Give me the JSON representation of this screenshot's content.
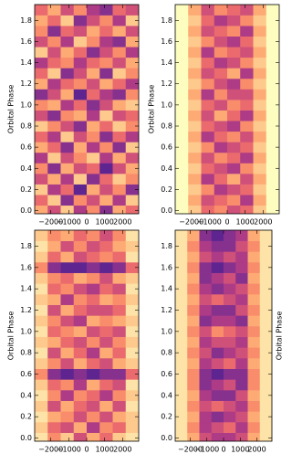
{
  "chart_data": [
    {
      "type": "heatmap",
      "ylabel": "Orbital Phase",
      "xlim": [
        -2900,
        2900
      ],
      "ylim": [
        -0.03,
        1.95
      ],
      "xticks": [
        {
          "value": -2000,
          "label": "−2000"
        },
        {
          "value": -1000,
          "label": "−1000"
        },
        0,
        1000,
        2000
      ],
      "yticks": [
        {
          "value": 0,
          "label": "0.0"
        },
        0.2,
        0.4,
        0.6,
        0.8,
        {
          "value": 1,
          "label": "1.0"
        },
        1.2,
        1.4,
        1.6,
        1.8
      ],
      "xbins": [
        -2900,
        -2175,
        -1450,
        -725,
        0,
        725,
        1450,
        2175,
        2900
      ],
      "ybins": [
        -0.05,
        0.05,
        0.15,
        0.25,
        0.35,
        0.45,
        0.55,
        0.65,
        0.75,
        0.85,
        0.95,
        1.05,
        1.15,
        1.25,
        1.35,
        1.45,
        1.55,
        1.65,
        1.75,
        1.85,
        1.95
      ],
      "colormap": [
        "#fcfdbf",
        "#fde3a7",
        "#fec98d",
        "#feaa74",
        "#f98c6b",
        "#ea6a6e",
        "#cf5079",
        "#ae3b86",
        "#87318f",
        "#5e2590"
      ],
      "values": [
        [
          3,
          6,
          2,
          7,
          4,
          8,
          3,
          5
        ],
        [
          5,
          2,
          8,
          4,
          6,
          3,
          7,
          2
        ],
        [
          2,
          7,
          5,
          9,
          3,
          6,
          4,
          8
        ],
        [
          6,
          3,
          7,
          2,
          8,
          5,
          2,
          4
        ],
        [
          4,
          8,
          3,
          6,
          5,
          9,
          6,
          3
        ],
        [
          7,
          2,
          6,
          4,
          2,
          7,
          3,
          6
        ],
        [
          3,
          5,
          8,
          3,
          7,
          4,
          8,
          2
        ],
        [
          5,
          7,
          2,
          6,
          4,
          8,
          5,
          7
        ],
        [
          2,
          4,
          6,
          8,
          3,
          5,
          2,
          4
        ],
        [
          6,
          8,
          4,
          3,
          7,
          2,
          6,
          5
        ],
        [
          4,
          3,
          7,
          5,
          8,
          6,
          3,
          2
        ],
        [
          8,
          6,
          3,
          9,
          5,
          7,
          8,
          4
        ],
        [
          3,
          7,
          5,
          4,
          6,
          3,
          5,
          7
        ],
        [
          5,
          2,
          8,
          6,
          3,
          8,
          2,
          4
        ],
        [
          7,
          5,
          4,
          7,
          5,
          4,
          6,
          3
        ],
        [
          2,
          6,
          3,
          5,
          8,
          6,
          4,
          7
        ],
        [
          6,
          4,
          7,
          2,
          4,
          7,
          8,
          3
        ],
        [
          4,
          8,
          5,
          6,
          3,
          5,
          3,
          6
        ],
        [
          3,
          5,
          2,
          8,
          6,
          4,
          7,
          2
        ],
        [
          5,
          3,
          6,
          4,
          7,
          8,
          5,
          6
        ]
      ]
    },
    {
      "type": "heatmap",
      "ylabel": "Orbital Phase",
      "xlim": [
        -2900,
        2900
      ],
      "ylim": [
        -0.03,
        1.95
      ],
      "xticks": [
        {
          "value": -2000,
          "label": "−2000"
        },
        {
          "value": -1000,
          "label": "−1000"
        },
        0,
        1000,
        2000
      ],
      "yticks": [
        {
          "value": 0,
          "label": "0.0"
        },
        0.2,
        0.4,
        0.6,
        0.8,
        {
          "value": 1,
          "label": "1.0"
        },
        1.2,
        1.4,
        1.6,
        1.8
      ],
      "xbins": [
        -2900,
        -2175,
        -1450,
        -725,
        0,
        725,
        1450,
        2175,
        2900
      ],
      "ybins": [
        -0.05,
        0.05,
        0.15,
        0.25,
        0.35,
        0.45,
        0.55,
        0.65,
        0.75,
        0.85,
        0.95,
        1.05,
        1.15,
        1.25,
        1.35,
        1.45,
        1.55,
        1.65,
        1.75,
        1.85,
        1.95
      ],
      "colormap": [
        "#fcfdbf",
        "#fde3a7",
        "#fec98d",
        "#feaa74",
        "#f98c6b",
        "#ea6a6e",
        "#cf5079",
        "#ae3b86",
        "#87318f",
        "#5e2590"
      ],
      "values": [
        [
          0,
          2,
          5,
          4,
          6,
          5,
          2,
          0
        ],
        [
          0,
          3,
          6,
          5,
          4,
          7,
          3,
          0
        ],
        [
          0,
          2,
          4,
          7,
          6,
          5,
          2,
          0
        ],
        [
          0,
          3,
          7,
          5,
          3,
          6,
          3,
          0
        ],
        [
          0,
          2,
          5,
          6,
          7,
          4,
          2,
          0
        ],
        [
          0,
          3,
          6,
          4,
          5,
          7,
          3,
          0
        ],
        [
          0,
          2,
          4,
          7,
          6,
          5,
          2,
          0
        ],
        [
          0,
          3,
          7,
          5,
          4,
          6,
          3,
          0
        ],
        [
          0,
          2,
          5,
          6,
          7,
          4,
          2,
          0
        ],
        [
          0,
          3,
          6,
          3,
          5,
          7,
          3,
          0
        ],
        [
          0,
          2,
          5,
          6,
          4,
          5,
          2,
          0
        ],
        [
          0,
          3,
          7,
          4,
          6,
          6,
          3,
          0
        ],
        [
          0,
          2,
          4,
          6,
          7,
          4,
          2,
          0
        ],
        [
          0,
          3,
          6,
          5,
          3,
          7,
          3,
          0
        ],
        [
          0,
          2,
          5,
          7,
          6,
          4,
          2,
          0
        ],
        [
          0,
          3,
          7,
          4,
          5,
          6,
          3,
          0
        ],
        [
          0,
          2,
          4,
          6,
          7,
          5,
          2,
          0
        ],
        [
          0,
          3,
          6,
          5,
          4,
          7,
          3,
          0
        ],
        [
          0,
          2,
          5,
          7,
          6,
          4,
          2,
          0
        ],
        [
          0,
          3,
          6,
          4,
          5,
          6,
          3,
          0
        ]
      ]
    },
    {
      "type": "heatmap",
      "ylabel": "Orbital Phase",
      "xlim": [
        -2900,
        2900
      ],
      "ylim": [
        -0.03,
        1.95
      ],
      "xticks": [
        {
          "value": -2000,
          "label": "−2000"
        },
        {
          "value": -1000,
          "label": "−1000"
        },
        0,
        1000,
        2000
      ],
      "yticks": [
        {
          "value": 0,
          "label": "0.0"
        },
        0.2,
        0.4,
        0.6,
        0.8,
        {
          "value": 1,
          "label": "1.0"
        },
        1.2,
        1.4,
        1.6,
        1.8
      ],
      "xbins": [
        -2900,
        -2175,
        -1450,
        -725,
        0,
        725,
        1450,
        2175,
        2900
      ],
      "ybins": [
        -0.05,
        0.05,
        0.15,
        0.25,
        0.35,
        0.45,
        0.55,
        0.65,
        0.75,
        0.85,
        0.95,
        1.05,
        1.15,
        1.25,
        1.35,
        1.45,
        1.55,
        1.65,
        1.75,
        1.85,
        1.95
      ],
      "colormap": [
        "#fcfdbf",
        "#fde3a7",
        "#fec98d",
        "#feaa74",
        "#f98c6b",
        "#ea6a6e",
        "#cf5079",
        "#ae3b86",
        "#87318f",
        "#5e2590"
      ],
      "values": [
        [
          1,
          4,
          2,
          6,
          3,
          5,
          2,
          1
        ],
        [
          2,
          5,
          6,
          3,
          7,
          4,
          5,
          2
        ],
        [
          1,
          3,
          4,
          6,
          4,
          6,
          3,
          2
        ],
        [
          2,
          6,
          3,
          5,
          6,
          3,
          6,
          1
        ],
        [
          1,
          4,
          7,
          4,
          5,
          7,
          4,
          2
        ],
        [
          2,
          5,
          4,
          7,
          3,
          5,
          6,
          1
        ],
        [
          4,
          8,
          9,
          8,
          9,
          8,
          8,
          5
        ],
        [
          2,
          4,
          6,
          3,
          5,
          6,
          3,
          2
        ],
        [
          1,
          6,
          3,
          5,
          7,
          3,
          5,
          1
        ],
        [
          2,
          3,
          5,
          6,
          4,
          6,
          4,
          2
        ],
        [
          1,
          5,
          4,
          3,
          6,
          5,
          6,
          1
        ],
        [
          2,
          4,
          6,
          7,
          3,
          4,
          3,
          2
        ],
        [
          1,
          6,
          3,
          5,
          6,
          6,
          5,
          1
        ],
        [
          2,
          3,
          7,
          4,
          5,
          3,
          4,
          2
        ],
        [
          1,
          5,
          4,
          6,
          7,
          5,
          6,
          1
        ],
        [
          2,
          4,
          5,
          3,
          4,
          6,
          3,
          2
        ],
        [
          4,
          8,
          9,
          9,
          8,
          9,
          8,
          5
        ],
        [
          2,
          5,
          3,
          6,
          5,
          4,
          5,
          1
        ],
        [
          1,
          3,
          6,
          4,
          6,
          5,
          3,
          2
        ],
        [
          2,
          4,
          3,
          5,
          4,
          6,
          4,
          1
        ]
      ]
    },
    {
      "type": "heatmap",
      "ylabel": "Orbital Phase",
      "xlim": [
        -2900,
        2900
      ],
      "ylim": [
        -0.03,
        1.95
      ],
      "xticks": [
        {
          "value": -2000,
          "label": "−2000"
        },
        {
          "value": -1000,
          "label": "−1000"
        },
        0,
        1000,
        2000
      ],
      "yticks": [
        {
          "value": 0,
          "label": "0.0"
        },
        0.2,
        0.4,
        0.6,
        0.8,
        {
          "value": 1,
          "label": "1.0"
        },
        1.2,
        1.4,
        1.6,
        1.8
      ],
      "xbins": [
        -2900,
        -2175,
        -1450,
        -725,
        0,
        725,
        1450,
        2175,
        2900
      ],
      "ybins": [
        -0.05,
        0.05,
        0.15,
        0.25,
        0.35,
        0.45,
        0.55,
        0.65,
        0.75,
        0.85,
        0.95,
        1.05,
        1.15,
        1.25,
        1.35,
        1.45,
        1.55,
        1.65,
        1.75,
        1.85,
        1.95
      ],
      "colormap": [
        "#fcfdbf",
        "#fde3a7",
        "#fec98d",
        "#feaa74",
        "#f98c6b",
        "#ea6a6e",
        "#cf5079",
        "#ae3b86",
        "#87318f",
        "#5e2590"
      ],
      "values": [
        [
          1,
          3,
          6,
          7,
          7,
          6,
          3,
          1
        ],
        [
          1,
          4,
          7,
          6,
          5,
          7,
          4,
          1
        ],
        [
          1,
          3,
          7,
          8,
          7,
          6,
          3,
          1
        ],
        [
          1,
          4,
          6,
          5,
          6,
          7,
          4,
          1
        ],
        [
          1,
          3,
          7,
          8,
          8,
          6,
          3,
          1
        ],
        [
          1,
          4,
          8,
          7,
          6,
          8,
          4,
          1
        ],
        [
          1,
          4,
          8,
          9,
          8,
          8,
          4,
          1
        ],
        [
          1,
          3,
          7,
          6,
          5,
          7,
          3,
          1
        ],
        [
          1,
          4,
          6,
          8,
          7,
          6,
          4,
          1
        ],
        [
          1,
          3,
          7,
          6,
          6,
          7,
          3,
          1
        ],
        [
          1,
          4,
          6,
          4,
          5,
          6,
          4,
          1
        ],
        [
          1,
          3,
          8,
          7,
          7,
          8,
          3,
          1
        ],
        [
          1,
          4,
          7,
          8,
          8,
          6,
          4,
          1
        ],
        [
          1,
          3,
          6,
          5,
          6,
          7,
          3,
          1
        ],
        [
          1,
          4,
          7,
          8,
          7,
          6,
          4,
          1
        ],
        [
          1,
          3,
          8,
          7,
          6,
          8,
          3,
          1
        ],
        [
          1,
          4,
          8,
          9,
          8,
          7,
          4,
          1
        ],
        [
          1,
          3,
          6,
          7,
          6,
          7,
          3,
          1
        ],
        [
          1,
          4,
          7,
          8,
          8,
          6,
          4,
          1
        ],
        [
          1,
          3,
          8,
          9,
          8,
          7,
          3,
          1
        ]
      ]
    }
  ]
}
